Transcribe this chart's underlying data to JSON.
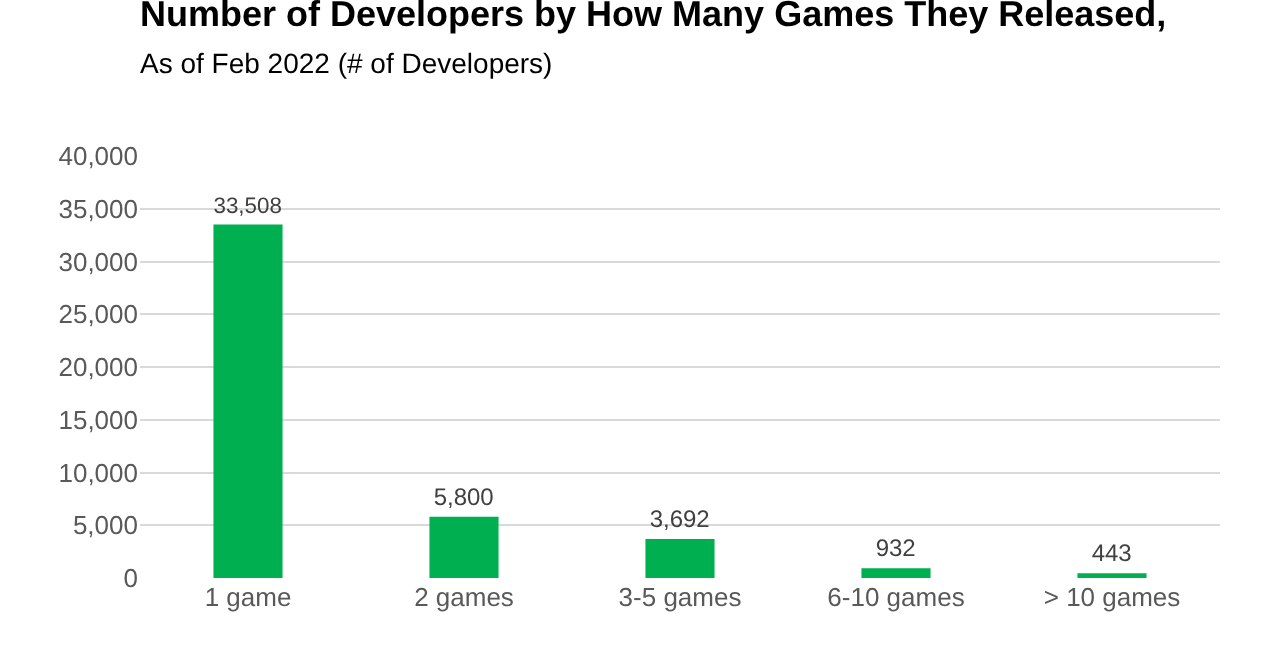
{
  "chart_data": {
    "type": "bar",
    "title": "Number of Developers by How Many Games They Released,",
    "subtitle": "As of Feb 2022 (# of Developers)",
    "categories": [
      "1 game",
      "2 games",
      "3-5 games",
      "6-10 games",
      "> 10 games"
    ],
    "values": [
      33508,
      5800,
      3692,
      932,
      443
    ],
    "color": "#00b050",
    "ylim": [
      0,
      40000
    ],
    "yticks": [
      {
        "value": 0,
        "label": "0"
      },
      {
        "value": 5000,
        "label": "5,000"
      },
      {
        "value": 10000,
        "label": "10,000"
      },
      {
        "value": 15000,
        "label": "15,000"
      },
      {
        "value": 20000,
        "label": "20,000"
      },
      {
        "value": 25000,
        "label": "25,000"
      },
      {
        "value": 30000,
        "label": "30,000"
      },
      {
        "value": 35000,
        "label": "35,000"
      },
      {
        "value": 40000,
        "label": "40,000"
      }
    ],
    "value_labels": [
      "33,508",
      "5,800",
      "3,692",
      "932",
      "443"
    ],
    "grid": "y"
  }
}
